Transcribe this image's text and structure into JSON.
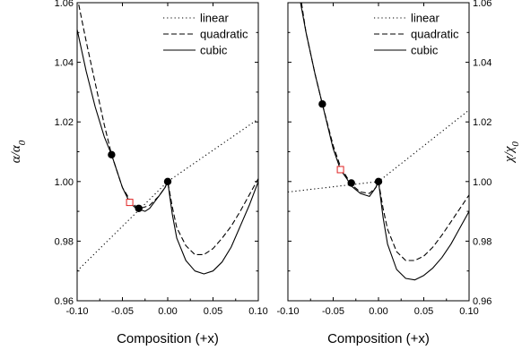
{
  "chart_data": [
    {
      "type": "line",
      "panel": "left",
      "ylabel": "α/α₀",
      "ylabel_main": "α/α",
      "ylabel_sub": "0",
      "xlabel": "Composition (+x)",
      "xlim": [
        -0.1,
        0.1
      ],
      "ylim": [
        0.96,
        1.06
      ],
      "xticks": [
        "-0.10",
        "-0.05",
        "0.00",
        "0.05",
        "0.10"
      ],
      "yticks": [
        "0.96",
        "0.98",
        "1.00",
        "1.02",
        "1.04",
        "1.06"
      ],
      "legend": {
        "position": "top-right",
        "entries": [
          "linear",
          "quadratic",
          "cubic"
        ]
      },
      "series": [
        {
          "name": "linear",
          "style": "dotted",
          "x": [
            -0.1,
            0.0,
            0.1
          ],
          "y": [
            0.97,
            1.0,
            1.021
          ]
        },
        {
          "name": "quadratic",
          "style": "dashed",
          "x": [
            -0.1,
            -0.09,
            -0.08,
            -0.07,
            -0.062,
            -0.05,
            -0.042,
            -0.035,
            -0.03,
            -0.02,
            -0.01,
            -0.003,
            0.0,
            0.005,
            0.01,
            0.02,
            0.03,
            0.04,
            0.05,
            0.06,
            0.07,
            0.08,
            0.09,
            0.1
          ],
          "y": [
            1.062,
            1.047,
            1.033,
            1.019,
            1.009,
            0.998,
            0.994,
            0.9915,
            0.991,
            0.992,
            0.995,
            0.998,
            1.0,
            0.9915,
            0.9845,
            0.9785,
            0.9755,
            0.9755,
            0.9775,
            0.981,
            0.985,
            0.99,
            0.9955,
            1.001
          ]
        },
        {
          "name": "cubic",
          "style": "solid",
          "x": [
            -0.1,
            -0.09,
            -0.08,
            -0.07,
            -0.062,
            -0.05,
            -0.042,
            -0.035,
            -0.03,
            -0.025,
            -0.02,
            -0.01,
            -0.003,
            0.0,
            0.005,
            0.01,
            0.02,
            0.03,
            0.04,
            0.05,
            0.06,
            0.07,
            0.08,
            0.09,
            0.1
          ],
          "y": [
            1.051,
            1.037,
            1.025,
            1.015,
            1.009,
            0.998,
            0.993,
            0.991,
            0.9905,
            0.99,
            0.991,
            0.995,
            0.998,
            1.0,
            0.989,
            0.981,
            0.9735,
            0.97,
            0.969,
            0.97,
            0.973,
            0.978,
            0.985,
            0.992,
            1.0
          ]
        }
      ],
      "markers_filled": [
        {
          "x": -0.062,
          "y": 1.009
        },
        {
          "x": -0.032,
          "y": 0.991
        },
        {
          "x": 0.0,
          "y": 1.0
        }
      ],
      "markers_open": [
        {
          "x": -0.042,
          "y": 0.993,
          "color": "#e02020"
        }
      ]
    },
    {
      "type": "line",
      "panel": "right",
      "ylabel": "χ/χ₀",
      "ylabel_main": "χ/χ",
      "ylabel_sub": "0",
      "xlabel": "Composition (+x)",
      "xlim": [
        -0.1,
        0.1
      ],
      "ylim": [
        0.96,
        1.06
      ],
      "xticks": [
        "-0.10",
        "-0.05",
        "0.00",
        "0.05",
        "0.10"
      ],
      "yticks": [
        "0.96",
        "0.98",
        "1.00",
        "1.02",
        "1.04",
        "1.06"
      ],
      "legend": {
        "position": "top-right",
        "entries": [
          "linear",
          "quadratic",
          "cubic"
        ]
      },
      "series": [
        {
          "name": "linear",
          "style": "dotted",
          "x": [
            -0.1,
            0.0,
            0.1
          ],
          "y": [
            0.9965,
            1.0,
            1.024
          ]
        },
        {
          "name": "quadratic",
          "style": "dashed",
          "x": [
            -0.085,
            -0.08,
            -0.07,
            -0.062,
            -0.05,
            -0.042,
            -0.035,
            -0.03,
            -0.02,
            -0.01,
            -0.003,
            0.0,
            0.005,
            0.01,
            0.02,
            0.03,
            0.04,
            0.05,
            0.06,
            0.07,
            0.08,
            0.09,
            0.1
          ],
          "y": [
            1.06,
            1.05,
            1.036,
            1.026,
            1.012,
            1.005,
            1.0015,
            0.999,
            0.9965,
            0.996,
            0.998,
            1.0,
            0.991,
            0.984,
            0.9765,
            0.9735,
            0.9735,
            0.975,
            0.978,
            0.982,
            0.9865,
            0.991,
            0.9955
          ]
        },
        {
          "name": "cubic",
          "style": "solid",
          "x": [
            -0.086,
            -0.08,
            -0.07,
            -0.062,
            -0.05,
            -0.042,
            -0.035,
            -0.03,
            -0.02,
            -0.01,
            -0.003,
            0.0,
            0.005,
            0.01,
            0.02,
            0.03,
            0.04,
            0.05,
            0.06,
            0.07,
            0.08,
            0.09,
            0.1
          ],
          "y": [
            1.06,
            1.05,
            1.036,
            1.026,
            1.011,
            1.004,
            1.001,
            0.9985,
            0.996,
            0.995,
            0.998,
            1.0,
            0.988,
            0.979,
            0.9705,
            0.9675,
            0.967,
            0.9685,
            0.971,
            0.9745,
            0.979,
            0.9845,
            0.99
          ]
        }
      ],
      "markers_filled": [
        {
          "x": -0.062,
          "y": 1.026
        },
        {
          "x": -0.03,
          "y": 0.9995
        },
        {
          "x": 0.0,
          "y": 1.0
        }
      ],
      "markers_open": [
        {
          "x": -0.042,
          "y": 1.004,
          "color": "#e02020"
        }
      ]
    }
  ]
}
